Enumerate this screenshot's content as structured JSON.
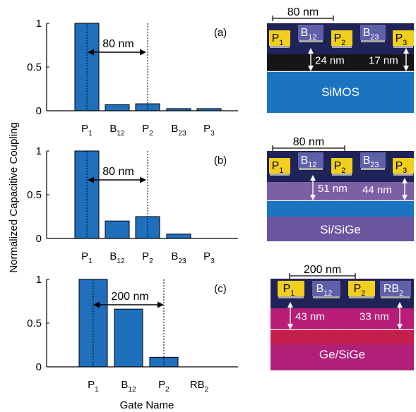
{
  "figure": {
    "ylabel": "Normalized Capacitive Coupling",
    "xlabel": "Gate Name",
    "colors": {
      "bar": "#1f6fbd",
      "gate_gold": "#f2cf1f",
      "gate_violet": "#5f61a8",
      "top_dark": "#1f2357",
      "simos_oxide": "#161616",
      "simos_substrate": "#1c74c0",
      "sige_well": "#7c5fa5",
      "sige_channel": "#1c74c0",
      "sige_substrate": "#6c55a0",
      "ge_top": "#b81d78",
      "ge_red": "#c41e4a",
      "ge_substrate": "#b01f78"
    }
  },
  "chart_data": [
    {
      "type": "bar",
      "panel": "(a)",
      "categories": [
        "P",
        "B",
        "P",
        "B",
        "P"
      ],
      "subscripts": [
        "1",
        "12",
        "2",
        "23",
        "3"
      ],
      "values": [
        1.0,
        0.07,
        0.08,
        0.025,
        0.025
      ],
      "ylim": [
        0,
        1
      ],
      "yticks": [
        0,
        0.5,
        1
      ],
      "ytick_labels": [
        "0",
        "0.5",
        "1"
      ],
      "annotation": "80 nm",
      "ref_lines_at_category": [
        0,
        2
      ],
      "device": {
        "name": "SiMOS",
        "pitch": "80 nm",
        "depth_left": "24 nm",
        "depth_right": "17 nm",
        "top_gates": [
          "P",
          "P",
          "P"
        ],
        "top_gate_subs": [
          "1",
          "2",
          "3"
        ],
        "barrier_gates": [
          "B",
          "B"
        ],
        "barrier_gate_subs": [
          "12",
          "23"
        ]
      }
    },
    {
      "type": "bar",
      "panel": "(b)",
      "categories": [
        "P",
        "B",
        "P",
        "B",
        "P"
      ],
      "subscripts": [
        "1",
        "12",
        "2",
        "23",
        "3"
      ],
      "values": [
        1.0,
        0.2,
        0.25,
        0.05,
        0.0
      ],
      "ylim": [
        0,
        1
      ],
      "yticks": [
        0,
        0.5,
        1
      ],
      "ytick_labels": [
        "0",
        "0.5",
        "1"
      ],
      "annotation": "80 nm",
      "ref_lines_at_category": [
        0,
        2
      ],
      "device": {
        "name": "Si/SiGe",
        "pitch": "80 nm",
        "depth_left": "51 nm",
        "depth_right": "44 nm",
        "top_gates": [
          "P",
          "P",
          "P"
        ],
        "top_gate_subs": [
          "1",
          "2",
          "3"
        ],
        "barrier_gates": [
          "B",
          "B"
        ],
        "barrier_gate_subs": [
          "12",
          "23"
        ]
      }
    },
    {
      "type": "bar",
      "panel": "(c)",
      "categories": [
        "P",
        "B",
        "P",
        "RB"
      ],
      "subscripts": [
        "1",
        "12",
        "2",
        "2"
      ],
      "values": [
        1.0,
        0.66,
        0.11,
        0.0
      ],
      "ylim": [
        0,
        1
      ],
      "yticks": [
        0,
        0.5,
        1
      ],
      "ytick_labels": [
        "0",
        "0.5",
        "1"
      ],
      "annotation": "200 nm",
      "ref_lines_at_category": [
        0,
        2
      ],
      "device": {
        "name": "Ge/SiGe",
        "pitch": "200 nm",
        "depth_left": "43 nm",
        "depth_right": "33 nm",
        "gates": [
          "P",
          "B",
          "P",
          "RB"
        ],
        "gate_subs": [
          "1",
          "12",
          "2",
          "2"
        ]
      }
    }
  ]
}
